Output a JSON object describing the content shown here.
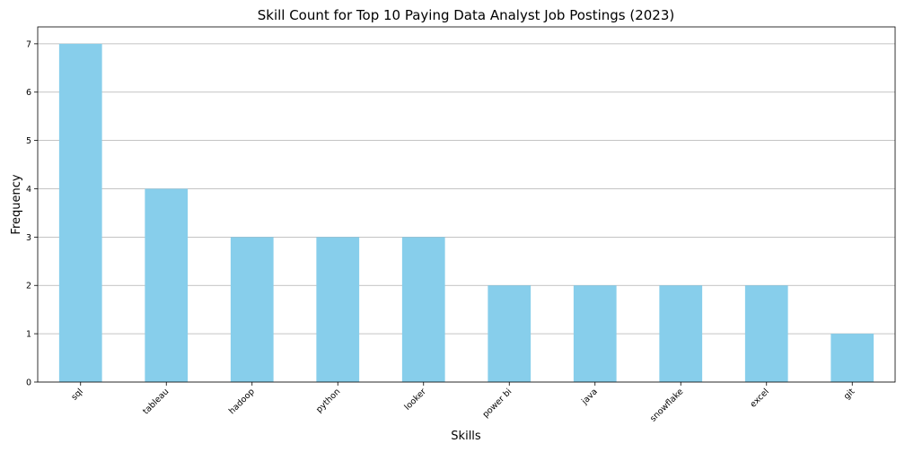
{
  "chart_data": {
    "type": "bar",
    "title": "Skill Count for Top 10 Paying Data Analyst Job Postings (2023)",
    "xlabel": "Skills",
    "ylabel": "Frequency",
    "categories": [
      "sql",
      "tableau",
      "hadoop",
      "python",
      "looker",
      "power bi",
      "java",
      "snowflake",
      "excel",
      "git"
    ],
    "values": [
      7,
      4,
      3,
      3,
      3,
      2,
      2,
      2,
      2,
      1
    ],
    "ylim": [
      0,
      7.35
    ],
    "yticks": [
      0,
      1,
      2,
      3,
      4,
      5,
      6,
      7
    ],
    "grid": "y-major",
    "legend": "none",
    "bar_color": "#87CEEB",
    "grid_color": "#b0b0b0",
    "axis_color": "#000000"
  }
}
